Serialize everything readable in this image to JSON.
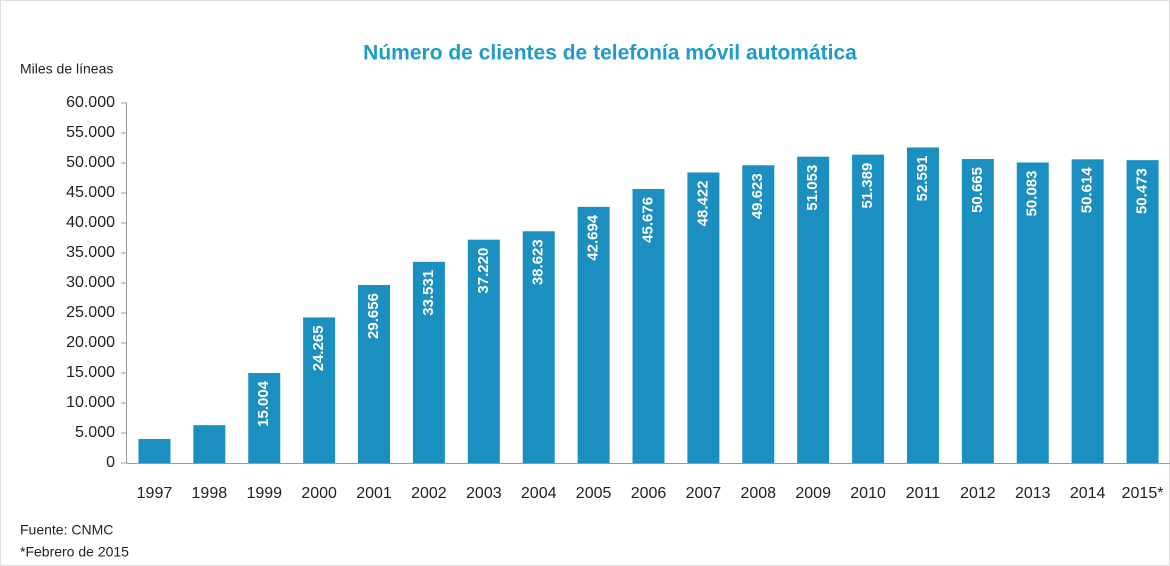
{
  "chart_data": {
    "type": "bar",
    "title": "Número de clientes de telefonía móvil automática",
    "y_axis_label": "Miles de líneas",
    "categories": [
      "1997",
      "1998",
      "1999",
      "2000",
      "2001",
      "2002",
      "2003",
      "2004",
      "2005",
      "2006",
      "2007",
      "2008",
      "2009",
      "2010",
      "2011",
      "2012",
      "2013",
      "2014",
      "2015*"
    ],
    "values": [
      4000,
      6300,
      15004,
      24265,
      29656,
      33531,
      37220,
      38623,
      42694,
      45676,
      48422,
      49623,
      51053,
      51389,
      52591,
      50665,
      50083,
      50614,
      50473
    ],
    "value_labels": [
      null,
      null,
      "15.004",
      "24.265",
      "29.656",
      "33.531",
      "37.220",
      "38.623",
      "42.694",
      "45.676",
      "48.422",
      "49.623",
      "51.053",
      "51.389",
      "52.591",
      "50.665",
      "50.083",
      "50.614",
      "50.473"
    ],
    "color": "#1a8fc0",
    "ylim": [
      0,
      60000
    ],
    "yticks": [
      0,
      {
        "value": 5000,
        "label": "5.000"
      },
      {
        "value": 10000,
        "label": "10.000"
      },
      {
        "value": 15000,
        "label": "15.000"
      },
      {
        "value": 20000,
        "label": "20.000"
      },
      {
        "value": 25000,
        "label": "25.000"
      },
      {
        "value": 30000,
        "label": "30.000"
      },
      {
        "value": 35000,
        "label": "35.000"
      },
      {
        "value": 40000,
        "label": "40.000"
      },
      {
        "value": 45000,
        "label": "45.000"
      },
      {
        "value": 50000,
        "label": "50.000"
      },
      {
        "value": 55000,
        "label": "55.000"
      },
      {
        "value": 60000,
        "label": "60.000"
      }
    ],
    "grid": false,
    "notes": [
      "Fuente: CNMC",
      "*Febrero de 2015"
    ]
  }
}
